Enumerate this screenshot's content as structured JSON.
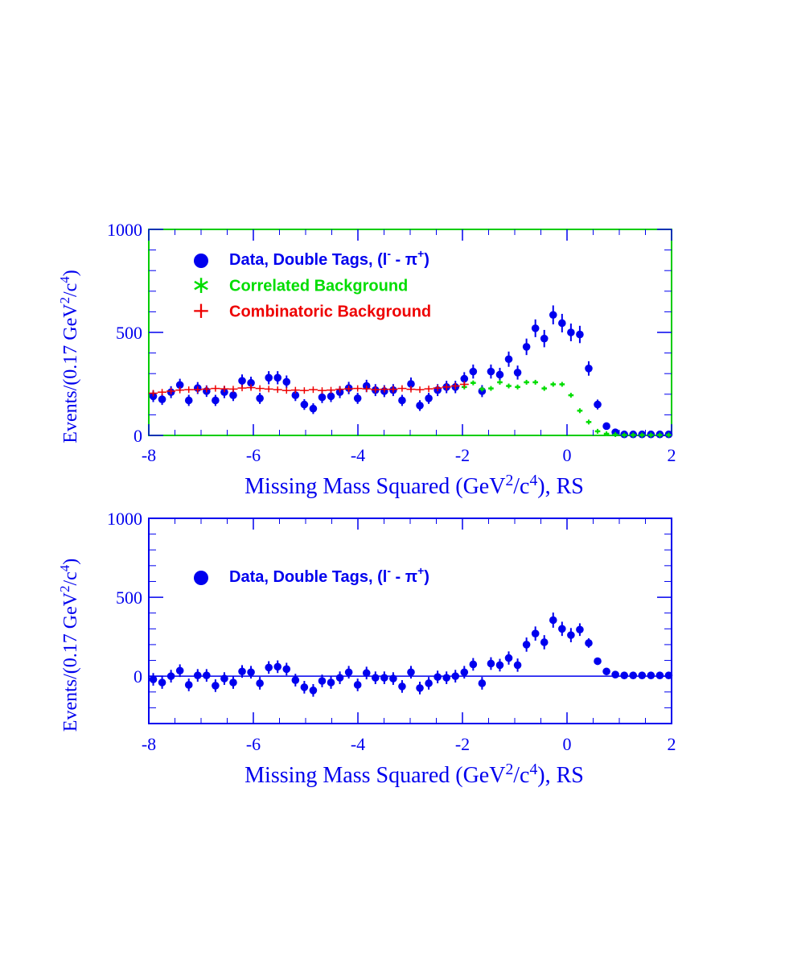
{
  "colors": {
    "data": "#0000ee",
    "correlated": "#00dd00",
    "combinatoric": "#ee0000",
    "frame_top": "#00cc00",
    "frame_bottom": "#0000ee"
  },
  "legend_symbols": {
    "data": "●",
    "correlated": "∗",
    "combinatoric": "+"
  },
  "chart_data": [
    {
      "type": "scatter",
      "xlim": [
        -8,
        2
      ],
      "ylim": [
        0,
        1000
      ],
      "xticks": [
        -8,
        -6,
        -4,
        -2,
        0,
        2
      ],
      "xtick_labels": [
        "-8",
        "-6",
        "-4",
        "-2",
        "0",
        "2"
      ],
      "yticks": [
        0,
        500,
        1000
      ],
      "ytick_labels": [
        "0",
        "500",
        "1000"
      ],
      "xlabel": "Missing Mass Squared (GeV²/c⁴), RS",
      "xlabel_parts": [
        "Missing Mass Squared (GeV",
        "2",
        "/c",
        "4",
        "), RS"
      ],
      "ylabel": "Events/(0.17 GeV²/c⁴)",
      "ylabel_parts": [
        "Events/(0.17 GeV",
        "2",
        "/c",
        "4",
        ")"
      ],
      "legend": [
        {
          "key": "data",
          "label": "Data, Double Tags, (l⁻ - π⁺)"
        },
        {
          "key": "correlated",
          "label": "Correlated Background"
        },
        {
          "key": "combinatoric",
          "label": "Combinatoric Background"
        }
      ],
      "series": [
        {
          "key": "data",
          "name": "Data, Double Tags, (l⁻ - π⁺)",
          "x": [
            -7.915,
            -7.745,
            -7.575,
            -7.405,
            -7.235,
            -7.065,
            -6.895,
            -6.725,
            -6.555,
            -6.385,
            -6.215,
            -6.045,
            -5.875,
            -5.705,
            -5.535,
            -5.365,
            -5.195,
            -5.025,
            -4.855,
            -4.685,
            -4.515,
            -4.345,
            -4.175,
            -4.005,
            -3.835,
            -3.665,
            -3.495,
            -3.325,
            -3.155,
            -2.985,
            -2.815,
            -2.645,
            -2.475,
            -2.305,
            -2.135,
            -1.965,
            -1.795,
            -1.625,
            -1.455,
            -1.285,
            -1.115,
            -0.945,
            -0.775,
            -0.605,
            -0.435,
            -0.265,
            -0.095,
            0.075,
            0.245,
            0.415,
            0.585,
            0.755,
            0.925,
            1.095,
            1.265,
            1.435,
            1.605,
            1.775,
            1.945
          ],
          "y": [
            190,
            175,
            210,
            245,
            170,
            230,
            215,
            170,
            210,
            195,
            265,
            255,
            180,
            280,
            280,
            260,
            195,
            150,
            130,
            185,
            190,
            210,
            230,
            180,
            240,
            220,
            215,
            220,
            170,
            250,
            145,
            180,
            220,
            235,
            235,
            275,
            310,
            215,
            310,
            295,
            370,
            305,
            430,
            520,
            470,
            585,
            545,
            500,
            490,
            325,
            150,
            45,
            15,
            5,
            5,
            5,
            5,
            5,
            5
          ],
          "err": [
            28,
            27,
            29,
            30,
            27,
            29,
            28,
            27,
            29,
            28,
            31,
            30,
            27,
            32,
            32,
            31,
            28,
            26,
            26,
            28,
            28,
            29,
            30,
            27,
            30,
            29,
            29,
            29,
            27,
            31,
            26,
            27,
            29,
            30,
            30,
            32,
            34,
            29,
            34,
            33,
            37,
            34,
            40,
            43,
            42,
            46,
            45,
            43,
            42,
            35,
            24,
            13,
            8,
            4,
            4,
            4,
            4,
            4,
            4
          ]
        },
        {
          "key": "correlated",
          "name": "Correlated Background",
          "x": [
            -1.965,
            -1.795,
            -1.625,
            -1.455,
            -1.285,
            -1.115,
            -0.945,
            -0.775,
            -0.605,
            -0.435,
            -0.265,
            -0.095,
            0.075,
            0.245,
            0.415,
            0.585,
            0.755,
            0.925,
            1.095,
            1.265,
            1.435,
            1.605,
            1.775,
            1.945
          ],
          "y": [
            235,
            255,
            225,
            228,
            258,
            240,
            235,
            258,
            258,
            228,
            248,
            248,
            195,
            120,
            65,
            20,
            8,
            4,
            2,
            2,
            2,
            2,
            2,
            2
          ]
        },
        {
          "key": "combinatoric",
          "name": "Combinatoric Background",
          "x": [
            -7.915,
            -7.745,
            -7.575,
            -7.405,
            -7.235,
            -7.065,
            -6.895,
            -6.725,
            -6.555,
            -6.385,
            -6.215,
            -6.045,
            -5.875,
            -5.705,
            -5.535,
            -5.365,
            -5.195,
            -5.025,
            -4.855,
            -4.685,
            -4.515,
            -4.345,
            -4.175,
            -4.005,
            -3.835,
            -3.665,
            -3.495,
            -3.325,
            -3.155,
            -2.985,
            -2.815,
            -2.645,
            -2.475,
            -2.305,
            -2.135,
            -1.965
          ],
          "y": [
            205,
            210,
            215,
            220,
            222,
            222,
            225,
            228,
            226,
            225,
            230,
            232,
            228,
            225,
            222,
            218,
            220,
            218,
            222,
            218,
            220,
            224,
            226,
            228,
            226,
            222,
            224,
            224,
            228,
            224,
            222,
            226,
            230,
            235,
            240,
            248
          ]
        }
      ]
    },
    {
      "type": "scatter",
      "xlim": [
        -8,
        2
      ],
      "ylim": [
        -300,
        1000
      ],
      "xticks": [
        -8,
        -6,
        -4,
        -2,
        0,
        2
      ],
      "xtick_labels": [
        "-8",
        "-6",
        "-4",
        "-2",
        "0",
        "2"
      ],
      "yticks": [
        0,
        500,
        1000
      ],
      "ytick_labels": [
        "0",
        "500",
        "1000"
      ],
      "zero_line": true,
      "xlabel": "Missing Mass Squared (GeV²/c⁴), RS",
      "xlabel_parts": [
        "Missing Mass Squared (GeV",
        "2",
        "/c",
        "4",
        "), RS"
      ],
      "ylabel": "Events/(0.17 GeV²/c⁴)",
      "ylabel_parts": [
        "Events/(0.17 GeV",
        "2",
        "/c",
        "4",
        ")"
      ],
      "legend": [
        {
          "key": "data",
          "label": "Data, Double Tags, (l⁻ - π⁺)"
        }
      ],
      "series": [
        {
          "key": "data",
          "name": "Data, Double Tags, (l⁻ - π⁺)",
          "x": [
            -7.915,
            -7.745,
            -7.575,
            -7.405,
            -7.235,
            -7.065,
            -6.895,
            -6.725,
            -6.555,
            -6.385,
            -6.215,
            -6.045,
            -5.875,
            -5.705,
            -5.535,
            -5.365,
            -5.195,
            -5.025,
            -4.855,
            -4.685,
            -4.515,
            -4.345,
            -4.175,
            -4.005,
            -3.835,
            -3.665,
            -3.495,
            -3.325,
            -3.155,
            -2.985,
            -2.815,
            -2.645,
            -2.475,
            -2.305,
            -2.135,
            -1.965,
            -1.795,
            -1.625,
            -1.455,
            -1.285,
            -1.115,
            -0.945,
            -0.775,
            -0.605,
            -0.435,
            -0.265,
            -0.095,
            0.075,
            0.245,
            0.415,
            0.585,
            0.755,
            0.925,
            1.095,
            1.265,
            1.435,
            1.605,
            1.775,
            1.945
          ],
          "y": [
            -20,
            -40,
            0,
            35,
            -55,
            5,
            5,
            -60,
            -15,
            -40,
            30,
            25,
            -45,
            55,
            60,
            45,
            -25,
            -70,
            -90,
            -30,
            -40,
            -10,
            25,
            -55,
            20,
            -10,
            -10,
            -15,
            -65,
            25,
            -75,
            -45,
            -5,
            -10,
            0,
            25,
            75,
            -45,
            80,
            70,
            115,
            70,
            200,
            270,
            215,
            355,
            300,
            260,
            295,
            210,
            95,
            30,
            10,
            5,
            5,
            5,
            5,
            5,
            5
          ],
          "err": [
            40,
            40,
            40,
            40,
            40,
            40,
            40,
            40,
            40,
            40,
            40,
            40,
            40,
            40,
            40,
            40,
            40,
            40,
            40,
            40,
            40,
            40,
            40,
            40,
            40,
            40,
            40,
            40,
            40,
            40,
            40,
            40,
            40,
            40,
            40,
            40,
            40,
            40,
            40,
            40,
            42,
            42,
            45,
            45,
            45,
            48,
            45,
            45,
            40,
            30,
            20,
            10,
            6,
            4,
            4,
            4,
            4,
            4,
            4
          ]
        }
      ]
    }
  ]
}
